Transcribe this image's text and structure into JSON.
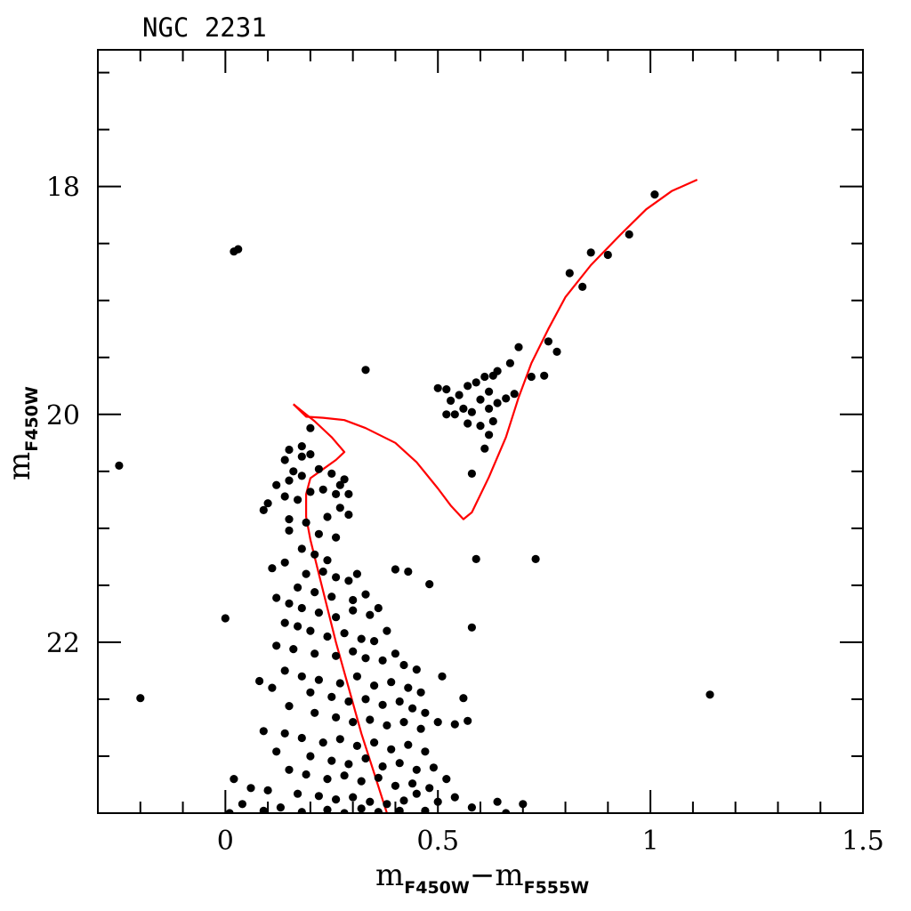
{
  "chart_data": {
    "type": "scatter",
    "title": "NGC 2231",
    "xlabel": {
      "main": "m",
      "sub1": "F450W",
      "minus": "−",
      "main2": "m",
      "sub2": "F555W"
    },
    "ylabel": {
      "main": "m",
      "sub": "F450W"
    },
    "xlim": [
      -0.3,
      1.5
    ],
    "ylim": [
      23.5,
      16.8
    ],
    "y_inverted": true,
    "x_major_ticks": [
      0,
      0.5,
      1,
      1.5
    ],
    "x_tick_labels": [
      "0",
      "0.5",
      "1",
      "1.5"
    ],
    "x_minor_step": 0.1,
    "y_major_ticks": [
      18,
      20,
      22
    ],
    "y_tick_labels": [
      "18",
      "20",
      "22"
    ],
    "y_minor_step": 0.5,
    "colors": {
      "points": "#000000",
      "isochrone": "#ff0000",
      "axes": "#000000"
    },
    "series": [
      {
        "type": "scatter",
        "points": [
          [
            1.01,
            18.07
          ],
          [
            0.95,
            18.42
          ],
          [
            0.9,
            18.6
          ],
          [
            0.86,
            18.58
          ],
          [
            0.81,
            18.76
          ],
          [
            0.84,
            18.88
          ],
          [
            0.03,
            18.55
          ],
          [
            0.02,
            18.57
          ],
          [
            0.78,
            19.45
          ],
          [
            0.76,
            19.36
          ],
          [
            0.75,
            19.66
          ],
          [
            0.72,
            19.67
          ],
          [
            0.69,
            19.41
          ],
          [
            0.67,
            19.55
          ],
          [
            0.64,
            19.62
          ],
          [
            0.61,
            19.67
          ],
          [
            0.63,
            19.66
          ],
          [
            0.59,
            19.72
          ],
          [
            0.62,
            19.8
          ],
          [
            0.6,
            19.87
          ],
          [
            0.57,
            19.75
          ],
          [
            0.55,
            19.83
          ],
          [
            0.56,
            19.95
          ],
          [
            0.53,
            19.88
          ],
          [
            0.5,
            19.77
          ],
          [
            0.52,
            19.78
          ],
          [
            0.54,
            20.0
          ],
          [
            0.58,
            19.98
          ],
          [
            0.6,
            20.1
          ],
          [
            0.63,
            20.06
          ],
          [
            0.62,
            20.18
          ],
          [
            0.61,
            20.3
          ],
          [
            0.68,
            19.82
          ],
          [
            0.66,
            19.86
          ],
          [
            0.64,
            19.9
          ],
          [
            0.62,
            19.95
          ],
          [
            0.57,
            20.08
          ],
          [
            0.52,
            20.0
          ],
          [
            0.58,
            20.52
          ],
          [
            0.33,
            19.61
          ],
          [
            -0.25,
            20.45
          ],
          [
            0.59,
            21.27
          ],
          [
            0.73,
            21.27
          ],
          [
            0.4,
            21.36
          ],
          [
            0.43,
            21.38
          ],
          [
            0.48,
            21.49
          ],
          [
            0.58,
            21.87
          ],
          [
            0.51,
            22.3
          ],
          [
            0.56,
            22.49
          ],
          [
            0.57,
            22.69
          ],
          [
            0.54,
            22.72
          ],
          [
            0.5,
            22.7
          ],
          [
            0.0,
            21.79
          ],
          [
            -0.2,
            22.49
          ],
          [
            1.14,
            22.46
          ],
          [
            0.58,
            23.45
          ],
          [
            0.64,
            23.4
          ],
          [
            0.66,
            23.5
          ],
          [
            0.7,
            23.42
          ],
          [
            0.47,
            23.48
          ],
          [
            0.45,
            23.33
          ],
          [
            0.2,
            20.12
          ],
          [
            0.18,
            20.28
          ],
          [
            0.2,
            20.35
          ],
          [
            0.18,
            20.37
          ],
          [
            0.15,
            20.31
          ],
          [
            0.14,
            20.4
          ],
          [
            0.16,
            20.5
          ],
          [
            0.15,
            20.58
          ],
          [
            0.18,
            20.54
          ],
          [
            0.22,
            20.48
          ],
          [
            0.25,
            20.52
          ],
          [
            0.28,
            20.57
          ],
          [
            0.27,
            20.62
          ],
          [
            0.29,
            20.7
          ],
          [
            0.26,
            20.7
          ],
          [
            0.23,
            20.66
          ],
          [
            0.2,
            20.68
          ],
          [
            0.17,
            20.75
          ],
          [
            0.14,
            20.72
          ],
          [
            0.12,
            20.62
          ],
          [
            0.1,
            20.78
          ],
          [
            0.09,
            20.84
          ],
          [
            0.15,
            20.92
          ],
          [
            0.19,
            20.95
          ],
          [
            0.24,
            20.9
          ],
          [
            0.27,
            20.82
          ],
          [
            0.29,
            20.88
          ],
          [
            0.15,
            21.02
          ],
          [
            0.22,
            21.05
          ],
          [
            0.26,
            21.08
          ],
          [
            0.18,
            21.18
          ],
          [
            0.21,
            21.23
          ],
          [
            0.24,
            21.28
          ],
          [
            0.14,
            21.3
          ],
          [
            0.11,
            21.35
          ],
          [
            0.19,
            21.4
          ],
          [
            0.23,
            21.38
          ],
          [
            0.26,
            21.43
          ],
          [
            0.29,
            21.46
          ],
          [
            0.31,
            21.4
          ],
          [
            0.17,
            21.52
          ],
          [
            0.21,
            21.56
          ],
          [
            0.25,
            21.6
          ],
          [
            0.3,
            21.63
          ],
          [
            0.33,
            21.58
          ],
          [
            0.12,
            21.61
          ],
          [
            0.15,
            21.66
          ],
          [
            0.18,
            21.7
          ],
          [
            0.22,
            21.74
          ],
          [
            0.26,
            21.78
          ],
          [
            0.3,
            21.72
          ],
          [
            0.34,
            21.76
          ],
          [
            0.36,
            21.7
          ],
          [
            0.14,
            21.83
          ],
          [
            0.17,
            21.86
          ],
          [
            0.2,
            21.9
          ],
          [
            0.24,
            21.95
          ],
          [
            0.28,
            21.92
          ],
          [
            0.32,
            21.97
          ],
          [
            0.35,
            21.99
          ],
          [
            0.38,
            21.9
          ],
          [
            0.12,
            22.03
          ],
          [
            0.16,
            22.06
          ],
          [
            0.21,
            22.1
          ],
          [
            0.26,
            22.12
          ],
          [
            0.3,
            22.08
          ],
          [
            0.33,
            22.14
          ],
          [
            0.37,
            22.16
          ],
          [
            0.4,
            22.1
          ],
          [
            0.42,
            22.2
          ],
          [
            0.45,
            22.24
          ],
          [
            0.14,
            22.25
          ],
          [
            0.18,
            22.3
          ],
          [
            0.22,
            22.33
          ],
          [
            0.27,
            22.36
          ],
          [
            0.31,
            22.3
          ],
          [
            0.35,
            22.38
          ],
          [
            0.39,
            22.35
          ],
          [
            0.43,
            22.4
          ],
          [
            0.46,
            22.44
          ],
          [
            0.08,
            22.34
          ],
          [
            0.11,
            22.4
          ],
          [
            0.2,
            22.44
          ],
          [
            0.25,
            22.48
          ],
          [
            0.29,
            22.52
          ],
          [
            0.33,
            22.5
          ],
          [
            0.37,
            22.55
          ],
          [
            0.41,
            22.52
          ],
          [
            0.44,
            22.58
          ],
          [
            0.47,
            22.62
          ],
          [
            0.15,
            22.56
          ],
          [
            0.21,
            22.62
          ],
          [
            0.26,
            22.66
          ],
          [
            0.3,
            22.7
          ],
          [
            0.34,
            22.68
          ],
          [
            0.38,
            22.73
          ],
          [
            0.42,
            22.7
          ],
          [
            0.46,
            22.76
          ],
          [
            0.09,
            22.78
          ],
          [
            0.14,
            22.8
          ],
          [
            0.18,
            22.84
          ],
          [
            0.23,
            22.88
          ],
          [
            0.27,
            22.85
          ],
          [
            0.31,
            22.91
          ],
          [
            0.35,
            22.88
          ],
          [
            0.39,
            22.94
          ],
          [
            0.43,
            22.9
          ],
          [
            0.47,
            22.96
          ],
          [
            0.12,
            22.96
          ],
          [
            0.2,
            23.0
          ],
          [
            0.25,
            23.04
          ],
          [
            0.29,
            23.07
          ],
          [
            0.33,
            23.02
          ],
          [
            0.37,
            23.09
          ],
          [
            0.41,
            23.06
          ],
          [
            0.45,
            23.12
          ],
          [
            0.49,
            23.1
          ],
          [
            0.15,
            23.12
          ],
          [
            0.19,
            23.16
          ],
          [
            0.24,
            23.2
          ],
          [
            0.28,
            23.17
          ],
          [
            0.32,
            23.22
          ],
          [
            0.36,
            23.19
          ],
          [
            0.4,
            23.26
          ],
          [
            0.44,
            23.24
          ],
          [
            0.48,
            23.28
          ],
          [
            0.52,
            23.2
          ],
          [
            0.02,
            23.2
          ],
          [
            0.06,
            23.28
          ],
          [
            0.1,
            23.3
          ],
          [
            0.17,
            23.33
          ],
          [
            0.22,
            23.35
          ],
          [
            0.26,
            23.38
          ],
          [
            0.3,
            23.36
          ],
          [
            0.34,
            23.4
          ],
          [
            0.38,
            23.42
          ],
          [
            0.42,
            23.39
          ],
          [
            0.5,
            23.4
          ],
          [
            0.54,
            23.36
          ],
          [
            0.04,
            23.42
          ],
          [
            0.09,
            23.48
          ],
          [
            0.13,
            23.45
          ],
          [
            0.18,
            23.49
          ],
          [
            0.24,
            23.47
          ],
          [
            0.28,
            23.5
          ],
          [
            0.32,
            23.46
          ],
          [
            0.36,
            23.49
          ],
          [
            0.01,
            23.5
          ],
          [
            0.41,
            23.48
          ]
        ]
      },
      {
        "type": "line",
        "points": [
          [
            0.16,
            19.91
          ],
          [
            0.19,
            20.02
          ],
          [
            0.23,
            20.03
          ],
          [
            0.28,
            20.05
          ],
          [
            0.33,
            20.12
          ],
          [
            0.4,
            20.25
          ],
          [
            0.45,
            20.42
          ],
          [
            0.5,
            20.65
          ],
          [
            0.53,
            20.8
          ],
          [
            0.56,
            20.92
          ],
          [
            0.58,
            20.86
          ],
          [
            0.62,
            20.55
          ],
          [
            0.66,
            20.2
          ],
          [
            0.69,
            19.85
          ],
          [
            0.72,
            19.55
          ],
          [
            0.76,
            19.25
          ],
          [
            0.8,
            18.97
          ],
          [
            0.86,
            18.69
          ],
          [
            0.93,
            18.42
          ],
          [
            0.99,
            18.2
          ],
          [
            1.05,
            18.04
          ],
          [
            1.11,
            17.94
          ]
        ]
      },
      {
        "type": "line",
        "points": [
          [
            0.16,
            19.91
          ],
          [
            0.21,
            20.06
          ],
          [
            0.25,
            20.2
          ],
          [
            0.28,
            20.33
          ],
          [
            0.26,
            20.4
          ],
          [
            0.23,
            20.48
          ],
          [
            0.2,
            20.56
          ],
          [
            0.19,
            20.7
          ],
          [
            0.19,
            20.9
          ],
          [
            0.2,
            21.1
          ],
          [
            0.22,
            21.4
          ],
          [
            0.24,
            21.7
          ],
          [
            0.26,
            22.0
          ],
          [
            0.29,
            22.4
          ],
          [
            0.32,
            22.8
          ],
          [
            0.35,
            23.15
          ],
          [
            0.38,
            23.5
          ]
        ]
      }
    ]
  }
}
